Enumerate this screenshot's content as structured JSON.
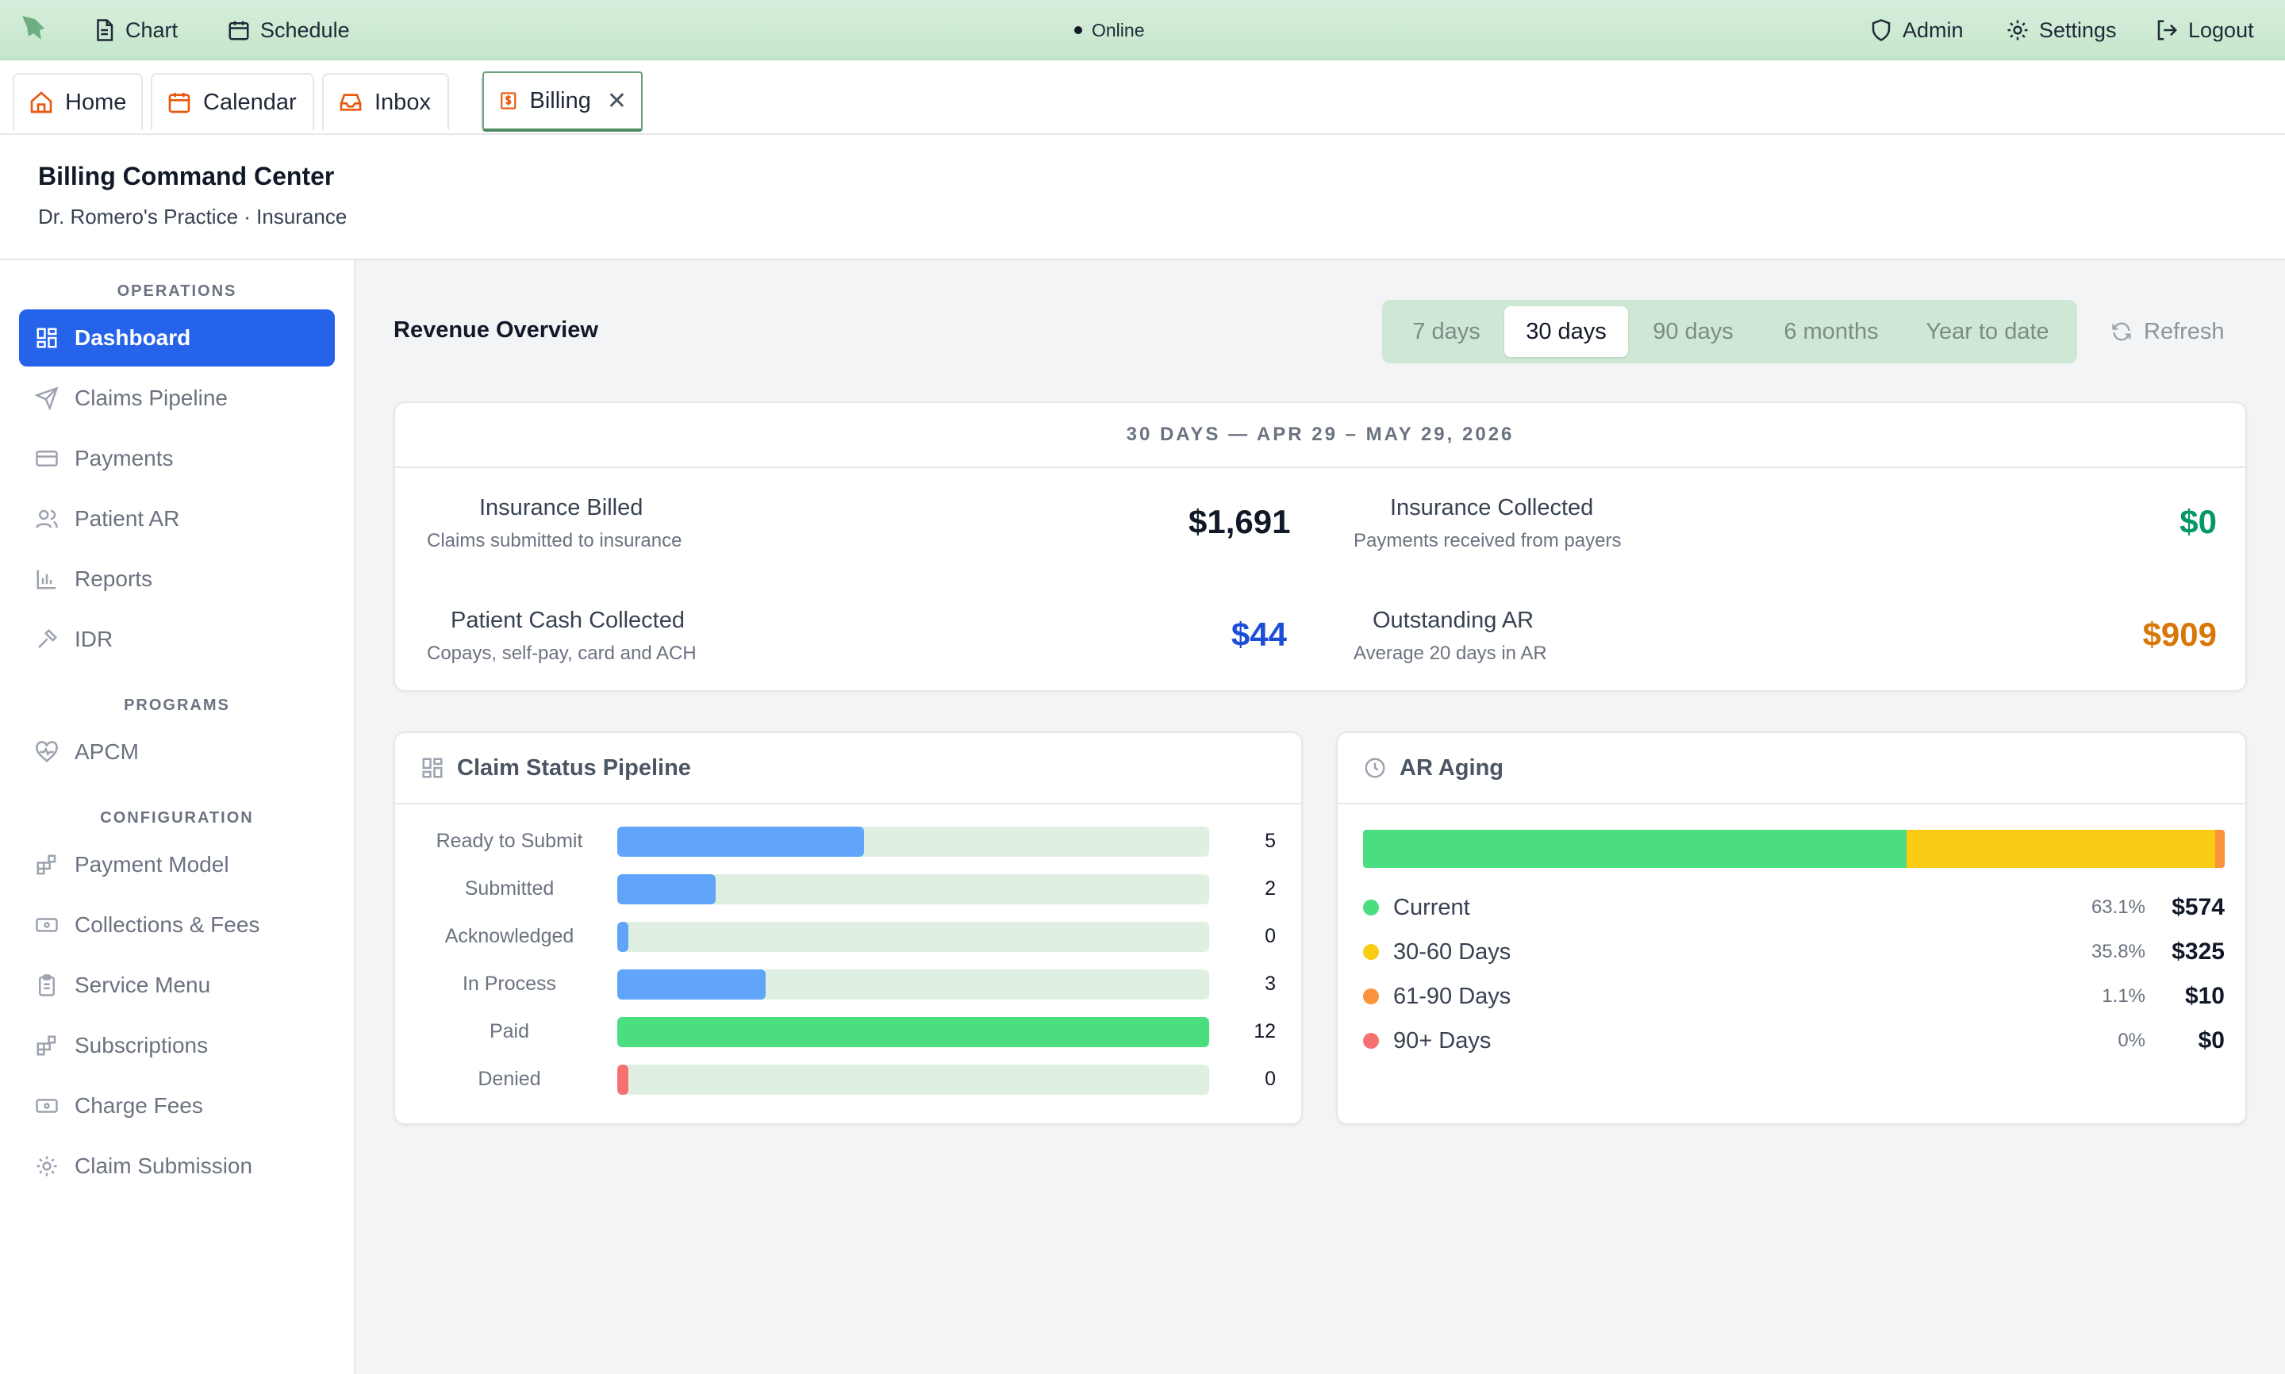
{
  "topbar": {
    "nav": [
      {
        "label": "Chart",
        "icon": "document-icon"
      },
      {
        "label": "Schedule",
        "icon": "calendar-icon"
      }
    ],
    "status": "Online",
    "right": [
      {
        "label": "Admin",
        "icon": "shield-icon"
      },
      {
        "label": "Settings",
        "icon": "gear-icon"
      },
      {
        "label": "Logout",
        "icon": "logout-icon"
      }
    ]
  },
  "tabs": [
    {
      "label": "Home",
      "icon": "home-icon"
    },
    {
      "label": "Calendar",
      "icon": "calendar-icon"
    },
    {
      "label": "Inbox",
      "icon": "inbox-icon"
    },
    {
      "label": "Billing",
      "icon": "billing-icon",
      "active": true
    }
  ],
  "header": {
    "title": "Billing Command Center",
    "subtitle": "Dr. Romero's Practice · Insurance"
  },
  "sidebar": {
    "sections": [
      {
        "title": "OPERATIONS",
        "items": [
          {
            "label": "Dashboard",
            "icon": "grid-icon",
            "active": true
          },
          {
            "label": "Claims Pipeline",
            "icon": "send-icon"
          },
          {
            "label": "Payments",
            "icon": "credit-card-icon"
          },
          {
            "label": "Patient AR",
            "icon": "users-icon"
          },
          {
            "label": "Reports",
            "icon": "bar-chart-icon"
          },
          {
            "label": "IDR",
            "icon": "gavel-icon"
          }
        ]
      },
      {
        "title": "PROGRAMS",
        "items": [
          {
            "label": "APCM",
            "icon": "heart-pulse-icon"
          }
        ]
      },
      {
        "title": "CONFIGURATION",
        "items": [
          {
            "label": "Payment Model",
            "icon": "blocks-icon"
          },
          {
            "label": "Collections & Fees",
            "icon": "banknote-icon"
          },
          {
            "label": "Service Menu",
            "icon": "clipboard-icon"
          },
          {
            "label": "Subscriptions",
            "icon": "blocks-icon"
          },
          {
            "label": "Charge Fees",
            "icon": "banknote-icon"
          },
          {
            "label": "Claim Submission",
            "icon": "gear-icon"
          }
        ]
      }
    ]
  },
  "main": {
    "title": "Revenue Overview",
    "ranges": [
      "7 days",
      "30 days",
      "90 days",
      "6 months",
      "Year to date"
    ],
    "active_range": "30 days",
    "refresh_label": "Refresh",
    "period": "30 DAYS — APR 29 – MAY 29, 2026",
    "metrics": [
      {
        "label": "Insurance Billed",
        "desc": "Claims submitted to insurance",
        "value": "$1,691",
        "color": "#111827"
      },
      {
        "label": "Insurance Collected",
        "desc": "Payments received from payers",
        "value": "$0",
        "color": "#059669"
      },
      {
        "label": "Patient Cash Collected",
        "desc": "Copays, self-pay, card and ACH",
        "value": "$44",
        "color": "#1d4ed8"
      },
      {
        "label": "Outstanding AR",
        "desc": "Average 20 days in AR",
        "value": "$909",
        "color": "#d97706"
      }
    ],
    "pipeline": {
      "title": "Claim Status Pipeline",
      "max": 12,
      "rows": [
        {
          "label": "Ready to Submit",
          "count": 5,
          "color": "#60a5fa"
        },
        {
          "label": "Submitted",
          "count": 2,
          "color": "#60a5fa"
        },
        {
          "label": "Acknowledged",
          "count": 0,
          "color": "#60a5fa"
        },
        {
          "label": "In Process",
          "count": 3,
          "color": "#60a5fa"
        },
        {
          "label": "Paid",
          "count": 12,
          "color": "#4ade80"
        },
        {
          "label": "Denied",
          "count": 0,
          "color": "#f87171"
        }
      ]
    },
    "aging": {
      "title": "AR Aging",
      "rows": [
        {
          "label": "Current",
          "pct": "63.1%",
          "amount": "$574",
          "share": 63.1,
          "color": "#4ade80"
        },
        {
          "label": "30-60 Days",
          "pct": "35.8%",
          "amount": "$325",
          "share": 35.8,
          "color": "#facc15"
        },
        {
          "label": "61-90 Days",
          "pct": "1.1%",
          "amount": "$10",
          "share": 1.1,
          "color": "#fb923c"
        },
        {
          "label": "90+ Days",
          "pct": "0%",
          "amount": "$0",
          "share": 0,
          "color": "#f87171"
        }
      ]
    }
  }
}
